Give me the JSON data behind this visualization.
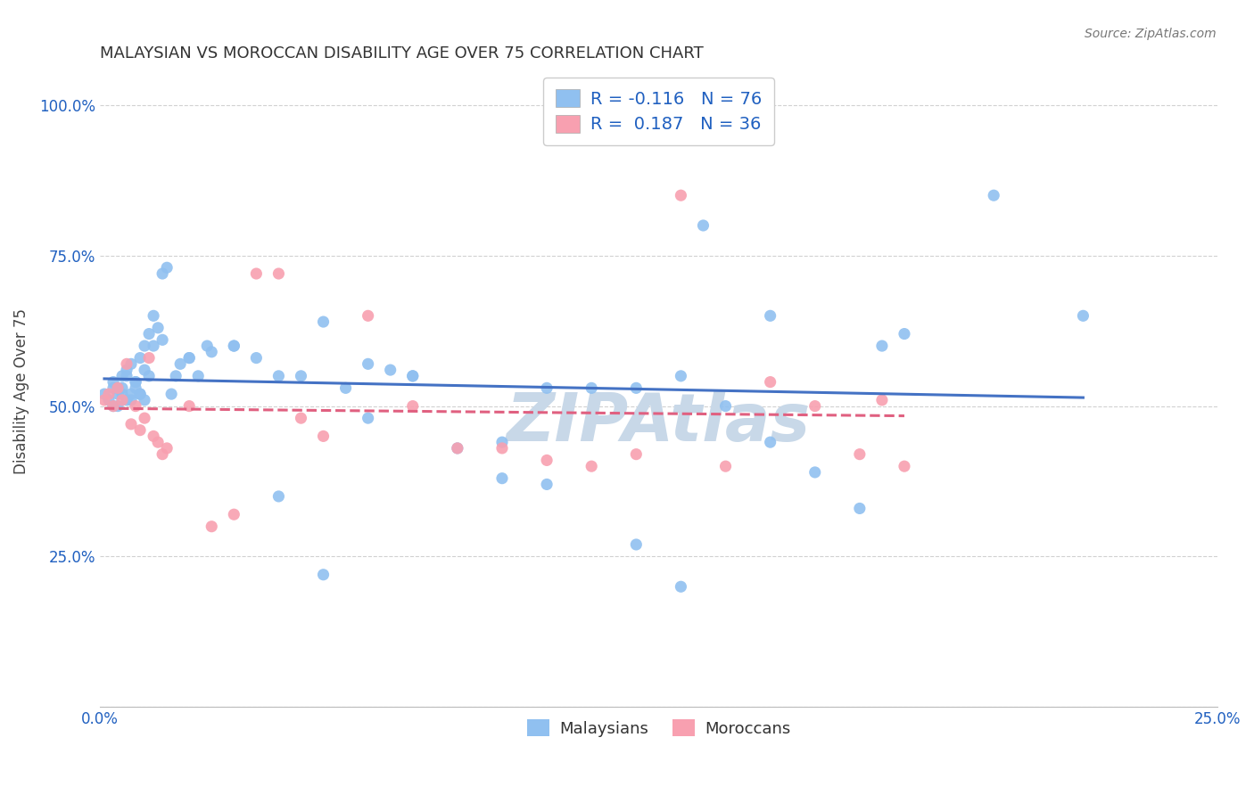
{
  "title": "MALAYSIAN VS MOROCCAN DISABILITY AGE OVER 75 CORRELATION CHART",
  "source": "Source: ZipAtlas.com",
  "ylabel": "Disability Age Over 75",
  "xlim": [
    0.0,
    0.25
  ],
  "ylim": [
    0.0,
    1.05
  ],
  "yticks": [
    0.0,
    0.25,
    0.5,
    0.75,
    1.0
  ],
  "ytick_labels": [
    "",
    "25.0%",
    "50.0%",
    "75.0%",
    "100.0%"
  ],
  "xticks": [
    0.0,
    0.05,
    0.1,
    0.15,
    0.2,
    0.25
  ],
  "xtick_labels": [
    "0.0%",
    "",
    "",
    "",
    "",
    "25.0%"
  ],
  "bg_color": "#ffffff",
  "grid_color": "#cccccc",
  "malaysian_color": "#90c0f0",
  "moroccan_color": "#f8a0b0",
  "trend_malaysian_color": "#4472c4",
  "trend_moroccan_color": "#e06080",
  "watermark_color": "#c8d8e8",
  "tick_color": "#2060c0",
  "malaysian_R": -0.116,
  "malaysian_N": 76,
  "moroccan_R": 0.187,
  "moroccan_N": 36,
  "malaysian_x": [
    0.001,
    0.002,
    0.003,
    0.003,
    0.004,
    0.004,
    0.005,
    0.005,
    0.006,
    0.006,
    0.007,
    0.007,
    0.008,
    0.008,
    0.009,
    0.009,
    0.01,
    0.01,
    0.011,
    0.011,
    0.012,
    0.013,
    0.014,
    0.015,
    0.016,
    0.017,
    0.018,
    0.02,
    0.022,
    0.024,
    0.03,
    0.035,
    0.04,
    0.045,
    0.05,
    0.055,
    0.06,
    0.065,
    0.07,
    0.08,
    0.09,
    0.1,
    0.11,
    0.12,
    0.13,
    0.14,
    0.15,
    0.16,
    0.17,
    0.18,
    0.003,
    0.004,
    0.005,
    0.006,
    0.007,
    0.008,
    0.009,
    0.01,
    0.012,
    0.014,
    0.02,
    0.025,
    0.03,
    0.04,
    0.05,
    0.06,
    0.07,
    0.09,
    0.1,
    0.12,
    0.13,
    0.135,
    0.15,
    0.175,
    0.2,
    0.22
  ],
  "malaysian_y": [
    0.52,
    0.51,
    0.53,
    0.54,
    0.5,
    0.53,
    0.52,
    0.55,
    0.51,
    0.56,
    0.52,
    0.57,
    0.53,
    0.54,
    0.58,
    0.52,
    0.51,
    0.6,
    0.62,
    0.55,
    0.65,
    0.63,
    0.72,
    0.73,
    0.52,
    0.55,
    0.57,
    0.58,
    0.55,
    0.6,
    0.6,
    0.58,
    0.35,
    0.55,
    0.22,
    0.53,
    0.48,
    0.56,
    0.55,
    0.43,
    0.38,
    0.37,
    0.53,
    0.27,
    0.2,
    0.5,
    0.44,
    0.39,
    0.33,
    0.62,
    0.5,
    0.52,
    0.53,
    0.55,
    0.51,
    0.54,
    0.52,
    0.56,
    0.6,
    0.61,
    0.58,
    0.59,
    0.6,
    0.55,
    0.64,
    0.57,
    0.55,
    0.44,
    0.53,
    0.53,
    0.55,
    0.8,
    0.65,
    0.6,
    0.85,
    0.65
  ],
  "moroccan_x": [
    0.001,
    0.002,
    0.003,
    0.004,
    0.005,
    0.006,
    0.007,
    0.008,
    0.009,
    0.01,
    0.011,
    0.012,
    0.013,
    0.014,
    0.015,
    0.02,
    0.025,
    0.03,
    0.035,
    0.04,
    0.045,
    0.05,
    0.06,
    0.07,
    0.08,
    0.09,
    0.1,
    0.11,
    0.12,
    0.13,
    0.14,
    0.15,
    0.16,
    0.17,
    0.175,
    0.18
  ],
  "moroccan_y": [
    0.51,
    0.52,
    0.5,
    0.53,
    0.51,
    0.57,
    0.47,
    0.5,
    0.46,
    0.48,
    0.58,
    0.45,
    0.44,
    0.42,
    0.43,
    0.5,
    0.3,
    0.32,
    0.72,
    0.72,
    0.48,
    0.45,
    0.65,
    0.5,
    0.43,
    0.43,
    0.41,
    0.4,
    0.42,
    0.85,
    0.4,
    0.54,
    0.5,
    0.42,
    0.51,
    0.4
  ]
}
